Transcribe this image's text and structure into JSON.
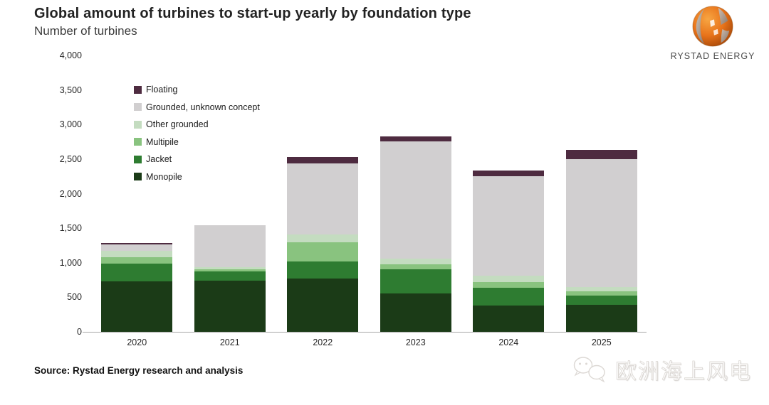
{
  "header": {
    "title": "Global amount of turbines to start-up yearly by foundation type",
    "subtitle": "Number of turbines"
  },
  "logo": {
    "brand": "RYSTAD ENERGY"
  },
  "chart_data": {
    "type": "bar",
    "stacked": true,
    "title": "Global amount of turbines to start-up yearly by foundation type",
    "ylabel": "Number of turbines",
    "xlabel": "",
    "ylim": [
      0,
      4000
    ],
    "grid": false,
    "legend_position": "upper-left-inside",
    "y_ticks": [
      "4,000",
      "3,500",
      "3,000",
      "2,500",
      "2,000",
      "1,500",
      "1,000",
      "500",
      "0"
    ],
    "categories": [
      "2020",
      "2021",
      "2022",
      "2023",
      "2024",
      "2025"
    ],
    "series": [
      {
        "name": "Monopile",
        "color": "#1b3b17",
        "values": [
          735,
          745,
          770,
          555,
          385,
          395
        ]
      },
      {
        "name": "Jacket",
        "color": "#2e7c31",
        "values": [
          255,
          130,
          250,
          350,
          255,
          135
        ]
      },
      {
        "name": "Multipile",
        "color": "#89c37f",
        "values": [
          95,
          35,
          280,
          75,
          80,
          55
        ]
      },
      {
        "name": "Other grounded",
        "color": "#c4dcc0",
        "values": [
          90,
          30,
          105,
          75,
          90,
          65
        ]
      },
      {
        "name": "Grounded, unknown concept",
        "color": "#d1cfd0",
        "values": [
          90,
          600,
          1030,
          1700,
          1440,
          1855
        ]
      },
      {
        "name": "Floating",
        "color": "#4e2b40",
        "values": [
          15,
          0,
          95,
          70,
          85,
          125
        ]
      }
    ],
    "totals": [
      1280,
      1540,
      2530,
      2825,
      2335,
      2630
    ]
  },
  "source": {
    "text": "Source: Rystad Energy research and analysis"
  },
  "watermark": {
    "text": "欧洲海上风电",
    "icon": "wechat-icon"
  }
}
